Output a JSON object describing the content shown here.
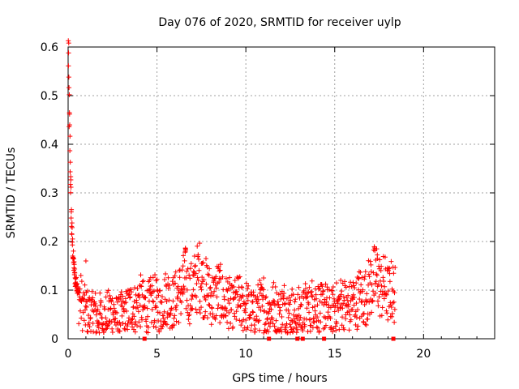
{
  "chart_data": {
    "type": "scatter",
    "title": "Day 076 of 2020, SRMTID for receiver uylp",
    "xlabel": "GPS time / hours",
    "ylabel": "SRMTID / TECUs",
    "xlim": [
      0,
      24
    ],
    "ylim": [
      0,
      0.6
    ],
    "x_ticks": [
      0,
      5,
      10,
      15,
      20
    ],
    "y_ticks": [
      0,
      0.1,
      0.2,
      0.3,
      0.4,
      0.5,
      0.6
    ],
    "x_tick_labels": [
      "0",
      "5",
      "10",
      "15",
      "20"
    ],
    "y_tick_labels": [
      "0",
      "0.1",
      "0.2",
      "0.3",
      "0.4",
      "0.5",
      "0.6"
    ],
    "grid": true,
    "marker": "+",
    "color": "#ff0000",
    "zero_markers_x": [
      4.3,
      11.3,
      12.9,
      13.2,
      14.4,
      18.3
    ],
    "series": [
      {
        "name": "SRMTID",
        "x": [
          0.02,
          0.04,
          0.06,
          0.08,
          0.1,
          0.12,
          0.14,
          0.16,
          0.18,
          0.2,
          0.25,
          0.3,
          0.35,
          0.4,
          0.5,
          0.6,
          0.7,
          0.8,
          0.9,
          1.0,
          1.2,
          1.4,
          1.5,
          1.6,
          1.8,
          2.0,
          2.2,
          2.4,
          2.6,
          2.8,
          3.0,
          3.2,
          3.4,
          3.6,
          3.8,
          4.0,
          4.2,
          4.4,
          4.6,
          4.8,
          5.0,
          5.2,
          5.4,
          5.6,
          5.8,
          6.0,
          6.2,
          6.4,
          6.6,
          6.8,
          7.0,
          7.2,
          7.4,
          7.6,
          7.8,
          8.0,
          8.2,
          8.4,
          8.6,
          8.8,
          9.0,
          9.2,
          9.4,
          9.6,
          9.8,
          10.0,
          10.2,
          10.4,
          10.6,
          10.8,
          11.0,
          11.2,
          11.4,
          11.6,
          11.8,
          12.0,
          12.2,
          12.4,
          12.6,
          12.8,
          13.0,
          13.2,
          13.4,
          13.6,
          13.8,
          14.0,
          14.2,
          14.4,
          14.6,
          14.8,
          15.0,
          15.2,
          15.4,
          15.6,
          15.8,
          16.0,
          16.2,
          16.4,
          16.6,
          16.8,
          17.0,
          17.2,
          17.4,
          17.6,
          17.8,
          18.0,
          18.2,
          18.4
        ],
        "y": [
          0.59,
          0.52,
          0.47,
          0.43,
          0.4,
          0.36,
          0.32,
          0.29,
          0.26,
          0.23,
          0.19,
          0.16,
          0.14,
          0.12,
          0.11,
          0.09,
          0.08,
          0.07,
          0.06,
          0.06,
          0.05,
          0.05,
          0.06,
          0.04,
          0.05,
          0.04,
          0.05,
          0.06,
          0.05,
          0.04,
          0.05,
          0.05,
          0.06,
          0.07,
          0.06,
          0.08,
          0.07,
          0.06,
          0.07,
          0.08,
          0.07,
          0.06,
          0.08,
          0.09,
          0.07,
          0.08,
          0.09,
          0.1,
          0.12,
          0.09,
          0.1,
          0.12,
          0.13,
          0.11,
          0.1,
          0.09,
          0.08,
          0.1,
          0.09,
          0.07,
          0.08,
          0.06,
          0.07,
          0.08,
          0.06,
          0.07,
          0.06,
          0.05,
          0.06,
          0.07,
          0.06,
          0.05,
          0.06,
          0.07,
          0.05,
          0.06,
          0.07,
          0.05,
          0.06,
          0.04,
          0.06,
          0.05,
          0.07,
          0.06,
          0.08,
          0.07,
          0.06,
          0.07,
          0.06,
          0.05,
          0.07,
          0.06,
          0.08,
          0.07,
          0.06,
          0.08,
          0.07,
          0.09,
          0.08,
          0.09,
          0.11,
          0.12,
          0.13,
          0.1,
          0.11,
          0.09,
          0.1,
          0.09
        ]
      }
    ]
  }
}
